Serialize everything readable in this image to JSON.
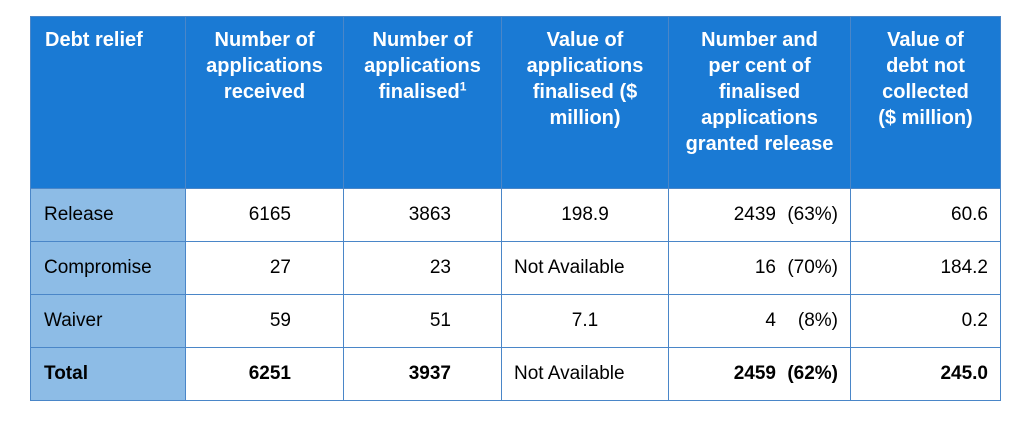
{
  "header": {
    "col1": "Debt relief",
    "col2": "Number of applications received",
    "col3": "Number of applications finalised",
    "col3_sup": "1",
    "col4": "Value of applications finalised ($ million)",
    "col5": "Number and per cent of finalised applications granted release",
    "col6": "Value of debt not collected ($ million)"
  },
  "rows": [
    {
      "label": "Release",
      "received": "6165",
      "finalised": "3863",
      "value": "198.9",
      "granted_num": "2439",
      "granted_pct": "(63%)",
      "not_collected": "60.6"
    },
    {
      "label": "Compromise",
      "received": "27",
      "finalised": "23",
      "value": "Not Available",
      "granted_num": "16",
      "granted_pct": "(70%)",
      "not_collected": "184.2"
    },
    {
      "label": "Waiver",
      "received": "59",
      "finalised": "51",
      "value": "7.1",
      "granted_num": "4",
      "granted_pct": "(8%)",
      "not_collected": "0.2"
    },
    {
      "label": "Total",
      "received": "6251",
      "finalised": "3937",
      "value": "Not Available",
      "granted_num": "2459",
      "granted_pct": "(62%)",
      "not_collected": "245.0"
    }
  ]
}
